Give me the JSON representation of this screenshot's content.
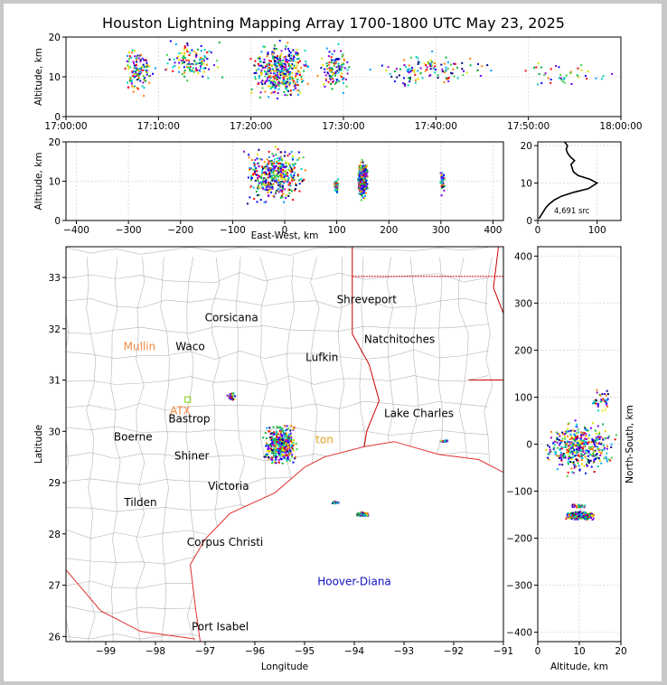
{
  "title": "Houston Lightning Mapping Array 1700-1800 UTC May 23, 2025",
  "colors": {
    "coast": "#e03030",
    "county": "#b4b4b4",
    "border": "#cc0000",
    "grid": "#dddddd"
  },
  "chart_data": [
    {
      "id": "time_altitude",
      "type": "scatter",
      "ylabel": "Altitude, km",
      "ylim": [
        0,
        20
      ],
      "yticks": [
        "0",
        "10",
        "20"
      ],
      "xticks": [
        "17:00:00",
        "17:10:00",
        "17:20:00",
        "17:30:00",
        "17:40:00",
        "17:50:00",
        "18:00:00"
      ],
      "xlim_minutes": [
        0,
        60
      ],
      "clusters": [
        {
          "x": [
            5.5,
            10
          ],
          "y": [
            5,
            19
          ],
          "density": "medium"
        },
        {
          "x": [
            10,
            17
          ],
          "y": [
            8,
            20
          ],
          "density": "medium"
        },
        {
          "x": [
            19,
            27
          ],
          "y": [
            3,
            20
          ],
          "density": "high"
        },
        {
          "x": [
            27,
            31
          ],
          "y": [
            5,
            19
          ],
          "density": "medium"
        },
        {
          "x": [
            31,
            48
          ],
          "y": [
            7,
            17
          ],
          "density": "medium"
        },
        {
          "x": [
            48,
            60
          ],
          "y": [
            6,
            15
          ],
          "density": "low"
        }
      ]
    },
    {
      "id": "ew_altitude",
      "type": "scatter",
      "xlabel": "East-West, km",
      "ylabel": "Altitude, km",
      "xlim": [
        -420,
        420
      ],
      "ylim": [
        0,
        20
      ],
      "xticks": [
        "−400",
        "−300",
        "−200",
        "−100",
        "0",
        "100",
        "200",
        "300",
        "400"
      ],
      "yticks": [
        "0",
        "10",
        "20"
      ],
      "clusters": [
        {
          "x": [
            -90,
            50
          ],
          "y": [
            3,
            20
          ],
          "density": "high"
        },
        {
          "x": [
            93,
            103
          ],
          "y": [
            7,
            11
          ],
          "density": "low"
        },
        {
          "x": [
            137,
            160
          ],
          "y": [
            5,
            16
          ],
          "density": "high"
        },
        {
          "x": [
            294,
            308
          ],
          "y": [
            6,
            14
          ],
          "density": "low"
        }
      ]
    },
    {
      "id": "altitude_histogram",
      "type": "line",
      "xlim": [
        0,
        140
      ],
      "ylim": [
        0,
        21
      ],
      "xticks": [
        "0",
        "100"
      ],
      "yticks": [
        "0",
        "10",
        "20"
      ],
      "annotation": "4,691 src",
      "x": [
        2,
        6,
        10,
        14,
        20,
        28,
        40,
        60,
        85,
        100,
        88,
        68,
        60,
        58,
        56,
        62,
        55,
        50,
        48,
        50,
        45
      ],
      "y": [
        0.5,
        1.5,
        2.5,
        3.5,
        4.5,
        5.5,
        6.5,
        7.5,
        8.5,
        10,
        11,
        12,
        13,
        14,
        15,
        16,
        17,
        18,
        19,
        20,
        21
      ]
    },
    {
      "id": "map",
      "type": "scatter",
      "xlabel": "Longitude",
      "ylabel": "Latitude",
      "xlim": [
        -99.8,
        -91
      ],
      "ylim": [
        25.9,
        33.6
      ],
      "xticks": [
        "−99",
        "−98",
        "−97",
        "−96",
        "−95",
        "−94",
        "−93",
        "−92",
        "−91"
      ],
      "yticks": [
        "26",
        "27",
        "28",
        "29",
        "30",
        "31",
        "32",
        "33"
      ],
      "clusters": [
        {
          "x": [
            -95.9,
            -95.1
          ],
          "y": [
            29.3,
            30.2
          ],
          "density": "high"
        },
        {
          "x": [
            -94.0,
            -93.7
          ],
          "y": [
            28.35,
            28.45
          ],
          "density": "medium"
        },
        {
          "x": [
            -94.5,
            -94.3
          ],
          "y": [
            28.6,
            28.65
          ],
          "density": "low"
        },
        {
          "x": [
            -92.3,
            -92.1
          ],
          "y": [
            29.8,
            29.85
          ],
          "density": "low"
        },
        {
          "x": [
            -96.6,
            -96.4
          ],
          "y": [
            30.6,
            30.8
          ],
          "density": "low"
        }
      ]
    },
    {
      "id": "altitude_ns",
      "type": "scatter",
      "xlabel": "Altitude, km",
      "ylabel": "North-South, km",
      "xlim": [
        0,
        20
      ],
      "ylim": [
        -420,
        420
      ],
      "xticks": [
        "0",
        "10",
        "20"
      ],
      "yticks": [
        "−400",
        "−300",
        "−200",
        "−100",
        "0",
        "100",
        "200",
        "300",
        "400"
      ],
      "clusters": [
        {
          "x": [
            0,
            20
          ],
          "y": [
            -70,
            60
          ],
          "density": "high"
        },
        {
          "x": [
            6,
            14
          ],
          "y": [
            -160,
            -140
          ],
          "density": "high"
        },
        {
          "x": [
            7,
            12
          ],
          "y": [
            -135,
            -125
          ],
          "density": "low"
        },
        {
          "x": [
            12,
            19
          ],
          "y": [
            60,
            120
          ],
          "density": "low"
        }
      ]
    }
  ],
  "map_labels": [
    {
      "name": "Shreveport",
      "color": "#000000",
      "lon": -93.75,
      "lat": 32.5
    },
    {
      "name": "Corsicana",
      "color": "#000000",
      "lon": -96.47,
      "lat": 32.15
    },
    {
      "name": "Natchitoches",
      "color": "#000000",
      "lon": -93.09,
      "lat": 31.72
    },
    {
      "name": "Mullin",
      "color": "#f08a40",
      "lon": -98.32,
      "lat": 31.58
    },
    {
      "name": "Waco",
      "color": "#000000",
      "lon": -97.3,
      "lat": 31.58
    },
    {
      "name": "Lufkin",
      "color": "#000000",
      "lon": -94.65,
      "lat": 31.37
    },
    {
      "name": "ATX",
      "color": "#f08a40",
      "lon": -97.5,
      "lat": 30.33
    },
    {
      "name": "Bastrop",
      "color": "#000000",
      "lon": -97.32,
      "lat": 30.17
    },
    {
      "name": "Lake Charles",
      "color": "#000000",
      "lon": -92.7,
      "lat": 30.28
    },
    {
      "name": "Boerne",
      "color": "#000000",
      "lon": -98.45,
      "lat": 29.82
    },
    {
      "name": "ton",
      "color": "#e0a020",
      "lon": -94.6,
      "lat": 29.77
    },
    {
      "name": "Shiner",
      "color": "#000000",
      "lon": -97.27,
      "lat": 29.45
    },
    {
      "name": "Victoria",
      "color": "#000000",
      "lon": -96.53,
      "lat": 28.86
    },
    {
      "name": "Tilden",
      "color": "#000000",
      "lon": -98.3,
      "lat": 28.54
    },
    {
      "name": "Corpus Christi",
      "color": "#000000",
      "lon": -96.6,
      "lat": 27.77
    },
    {
      "name": "Hoover-Diana",
      "color": "#1010c0",
      "lon": -94.0,
      "lat": 27.0
    },
    {
      "name": "Port Isabel",
      "color": "#000000",
      "lon": -96.7,
      "lat": 26.12
    }
  ]
}
